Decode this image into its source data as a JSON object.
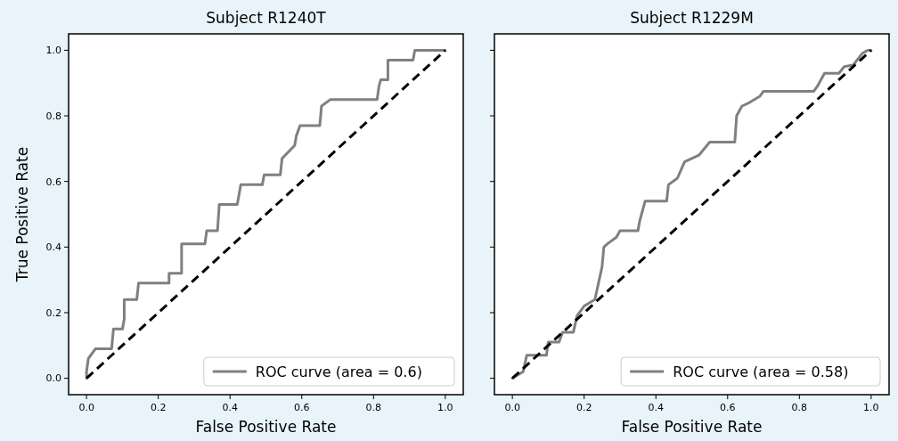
{
  "chart_data": [
    {
      "type": "line",
      "title": "Subject R1240T",
      "xlabel": "False Positive Rate",
      "ylabel": "True Positive Rate",
      "xlim": [
        -0.05,
        1.05
      ],
      "ylim": [
        -0.05,
        1.05
      ],
      "xticks": [
        {
          "value": 0,
          "label": "0.0"
        },
        {
          "value": 0.2,
          "label": "0.2"
        },
        {
          "value": 0.4,
          "label": "0.4"
        },
        {
          "value": 0.6,
          "label": "0.6"
        },
        {
          "value": 0.8,
          "label": "0.8"
        },
        {
          "value": 1,
          "label": "1.0"
        }
      ],
      "yticks": [
        {
          "value": 0,
          "label": "0.0"
        },
        {
          "value": 0.2,
          "label": "0.2"
        },
        {
          "value": 0.4,
          "label": "0.4"
        },
        {
          "value": 0.6,
          "label": "0.6"
        },
        {
          "value": 0.8,
          "label": "0.8"
        },
        {
          "value": 1,
          "label": "1.0"
        }
      ],
      "legend": "bottom right",
      "grid": false,
      "series": [
        {
          "name": "ROC curve (area = 0.6)",
          "color": "#808080",
          "line_style": "solid",
          "x": [
            0,
            0,
            0.005,
            0.025,
            0.07,
            0.075,
            0.1,
            0.105,
            0.105,
            0.14,
            0.145,
            0.23,
            0.23,
            0.265,
            0.265,
            0.33,
            0.335,
            0.365,
            0.37,
            0.42,
            0.425,
            0.43,
            0.49,
            0.495,
            0.54,
            0.545,
            0.58,
            0.585,
            0.595,
            0.65,
            0.655,
            0.68,
            0.81,
            0.815,
            0.82,
            0.84,
            0.84,
            0.91,
            0.915,
            1
          ],
          "values": [
            0,
            0.02,
            0.06,
            0.09,
            0.09,
            0.15,
            0.15,
            0.18,
            0.24,
            0.24,
            0.29,
            0.29,
            0.32,
            0.32,
            0.41,
            0.41,
            0.45,
            0.45,
            0.53,
            0.53,
            0.56,
            0.59,
            0.59,
            0.62,
            0.62,
            0.67,
            0.71,
            0.74,
            0.77,
            0.77,
            0.83,
            0.85,
            0.85,
            0.89,
            0.91,
            0.91,
            0.97,
            0.97,
            1,
            1
          ]
        },
        {
          "color": "#000000",
          "line_style": "dashed",
          "x": [
            0,
            1
          ],
          "values": [
            0,
            1
          ]
        }
      ]
    },
    {
      "type": "line",
      "title": "Subject R1229M",
      "xlabel": "False Positive Rate",
      "xlim": [
        -0.05,
        1.05
      ],
      "ylim": [
        -0.05,
        1.05
      ],
      "xticks": [
        {
          "value": 0,
          "label": "0.0"
        },
        {
          "value": 0.2,
          "label": "0.2"
        },
        {
          "value": 0.4,
          "label": "0.4"
        },
        {
          "value": 0.6,
          "label": "0.6"
        },
        {
          "value": 0.8,
          "label": "0.8"
        },
        {
          "value": 1,
          "label": "1.0"
        }
      ],
      "yticks": [
        {
          "value": 0,
          "label": null
        },
        {
          "value": 0.2,
          "label": null
        },
        {
          "value": 0.4,
          "label": null
        },
        {
          "value": 0.6,
          "label": null
        },
        {
          "value": 0.8,
          "label": null
        },
        {
          "value": 1,
          "label": null
        }
      ],
      "tick_labels": "x",
      "legend": "bottom right",
      "grid": false,
      "series": [
        {
          "name": "ROC curve (area = 0.58)",
          "color": "#808080",
          "line_style": "solid",
          "x": [
            0,
            0.03,
            0.04,
            0.095,
            0.1,
            0.13,
            0.14,
            0.17,
            0.18,
            0.2,
            0.23,
            0.25,
            0.255,
            0.265,
            0.29,
            0.3,
            0.35,
            0.355,
            0.37,
            0.43,
            0.435,
            0.46,
            0.48,
            0.52,
            0.55,
            0.62,
            0.625,
            0.64,
            0.66,
            0.69,
            0.7,
            0.84,
            0.85,
            0.87,
            0.91,
            0.925,
            0.95,
            0.975,
            0.99,
            1
          ],
          "values": [
            0,
            0.02,
            0.07,
            0.07,
            0.11,
            0.11,
            0.14,
            0.14,
            0.19,
            0.22,
            0.24,
            0.34,
            0.4,
            0.41,
            0.43,
            0.45,
            0.45,
            0.48,
            0.54,
            0.54,
            0.59,
            0.61,
            0.66,
            0.68,
            0.72,
            0.72,
            0.8,
            0.83,
            0.84,
            0.86,
            0.875,
            0.875,
            0.89,
            0.93,
            0.93,
            0.95,
            0.955,
            0.99,
            1,
            1
          ]
        },
        {
          "color": "#000000",
          "line_style": "dashed",
          "x": [
            0,
            1
          ],
          "values": [
            0,
            1
          ]
        }
      ]
    }
  ]
}
